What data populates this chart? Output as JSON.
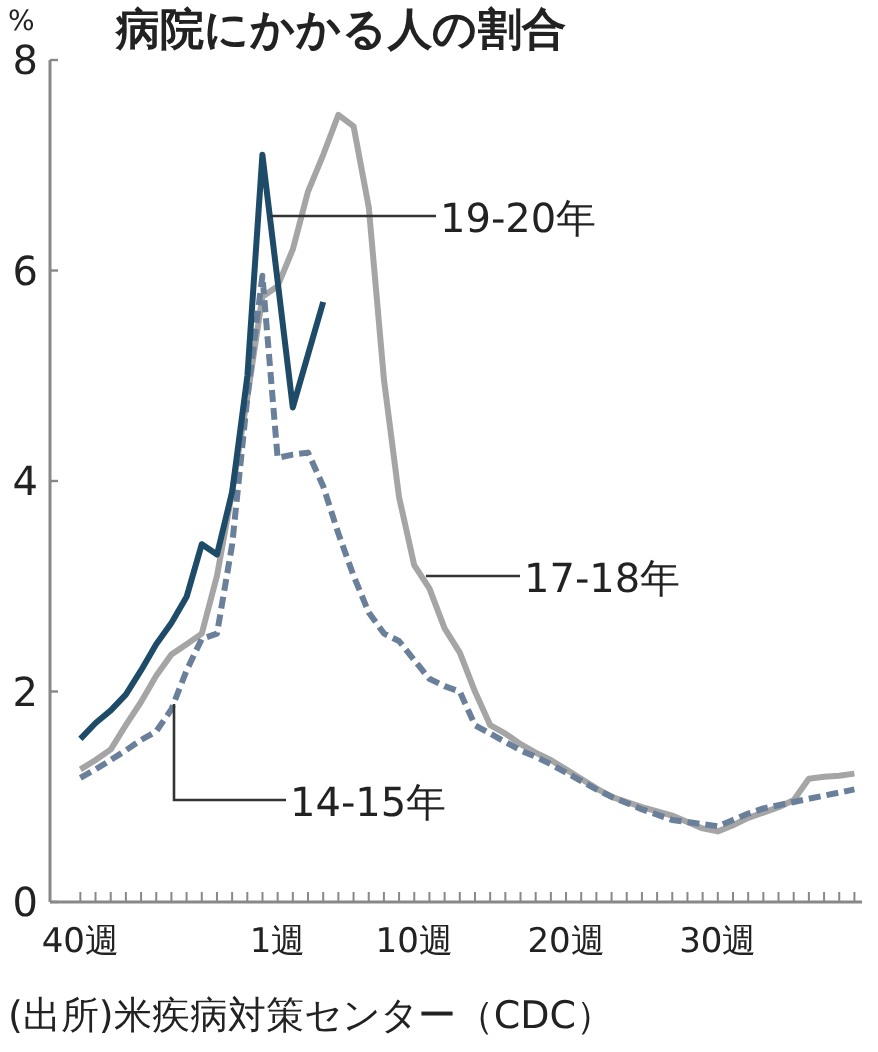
{
  "chart_data": {
    "type": "line",
    "title": "病院にかかる人の割合",
    "ylabel": "%",
    "ylim": [
      0,
      8
    ],
    "yticks": [
      0,
      2,
      4,
      6,
      8
    ],
    "categories": [
      "40週",
      null,
      null,
      null,
      null,
      null,
      null,
      null,
      null,
      null,
      null,
      null,
      null,
      "1週",
      null,
      null,
      null,
      null,
      null,
      null,
      null,
      null,
      "10週",
      null,
      null,
      null,
      null,
      null,
      null,
      null,
      null,
      null,
      "20週",
      null,
      null,
      null,
      null,
      null,
      null,
      null,
      null,
      null,
      "30週",
      null,
      null,
      null,
      null,
      null,
      null,
      null,
      null,
      null
    ],
    "grid": false,
    "marker": "none",
    "series": [
      {
        "name": "17-18年",
        "color": "#a5a5a5",
        "line_style": "solid",
        "values": [
          1.26,
          1.35,
          1.45,
          1.68,
          1.9,
          2.15,
          2.35,
          2.45,
          2.55,
          3.1,
          3.9,
          4.8,
          5.75,
          5.85,
          6.2,
          6.75,
          7.1,
          7.48,
          7.37,
          6.6,
          4.96,
          3.85,
          3.2,
          2.98,
          2.6,
          2.37,
          2.0,
          1.68,
          1.6,
          1.5,
          1.42,
          1.35,
          1.26,
          1.17,
          1.08,
          1.0,
          0.95,
          0.9,
          0.86,
          0.82,
          0.76,
          0.7,
          0.67,
          0.73,
          0.8,
          0.85,
          0.9,
          0.97,
          1.17,
          1.19,
          1.2,
          1.22
        ]
      },
      {
        "name": "14-15年",
        "color": "#6a7f99",
        "line_style": "dashed",
        "values": [
          1.18,
          1.26,
          1.35,
          1.44,
          1.54,
          1.62,
          1.83,
          2.2,
          2.5,
          2.55,
          3.4,
          4.8,
          5.95,
          4.22,
          4.25,
          4.27,
          3.95,
          3.5,
          3.1,
          2.75,
          2.55,
          2.48,
          2.3,
          2.12,
          2.05,
          2.0,
          1.68,
          1.6,
          1.52,
          1.44,
          1.38,
          1.31,
          1.23,
          1.15,
          1.07,
          1.0,
          0.94,
          0.88,
          0.83,
          0.78,
          0.76,
          0.74,
          0.72,
          0.78,
          0.84,
          0.89,
          0.92,
          0.95,
          0.98,
          1.01,
          1.04,
          1.07
        ]
      },
      {
        "name": "19-20年",
        "color": "#1d4b68",
        "line_style": "solid",
        "values": [
          1.55,
          1.7,
          1.82,
          1.97,
          2.2,
          2.45,
          2.65,
          2.9,
          3.4,
          3.3,
          3.9,
          5.0,
          7.1,
          5.9,
          4.7,
          5.2,
          5.7,
          null,
          null,
          null,
          null,
          null,
          null,
          null,
          null,
          null,
          null,
          null,
          null,
          null,
          null,
          null,
          null,
          null,
          null,
          null,
          null,
          null,
          null,
          null,
          null,
          null,
          null,
          null,
          null,
          null,
          null,
          null,
          null,
          null,
          null,
          null
        ]
      }
    ],
    "annotations": [
      "(出所)米疾病対策センター（CDC）"
    ]
  }
}
